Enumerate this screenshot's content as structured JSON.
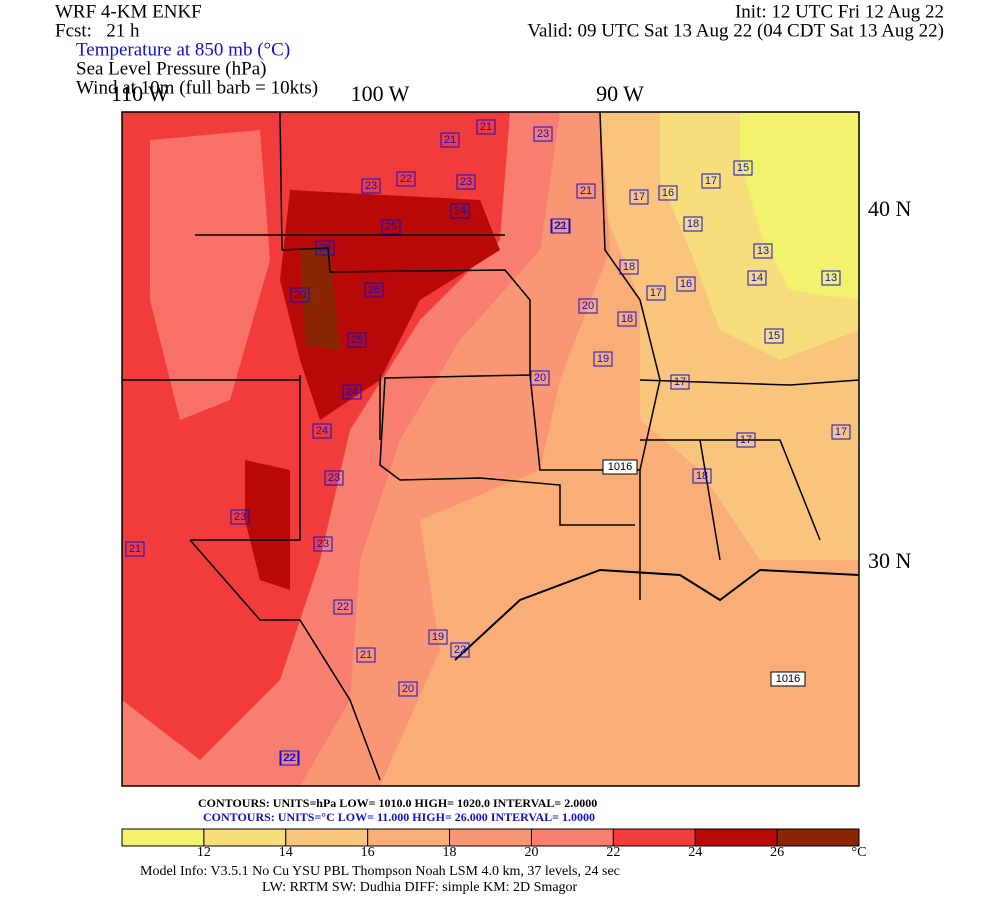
{
  "header": {
    "title": "WRF 4-KM ENKF",
    "forecast": "Fcst:   21 h",
    "init": "Init: 12 UTC Fri 12 Aug 22",
    "valid": "Valid: 09 UTC Sat 13 Aug 22 (04 CDT Sat 13 Aug 22)",
    "fields": [
      "Temperature at 850 mb (°C)",
      "Sea Level Pressure (hPa)",
      "Wind at 10m (full barb = 10kts)"
    ]
  },
  "map": {
    "longitude_labels": [
      "110 W",
      "100 W",
      "90 W"
    ],
    "latitude_labels": [
      "40 N",
      "30 N"
    ],
    "temperature_labels": [
      "21",
      "23",
      "23",
      "22",
      "23",
      "24",
      "25",
      "26",
      "21",
      "26",
      "25",
      "24",
      "24",
      "23",
      "23",
      "23",
      "22",
      "21",
      "20",
      "19",
      "22",
      "21",
      "20",
      "19",
      "20",
      "18",
      "17",
      "16",
      "15",
      "13",
      "13",
      "14",
      "17",
      "18",
      "17",
      "17",
      "16",
      "18",
      "17",
      "15",
      "17",
      "18",
      "21",
      "20",
      "22",
      "22",
      "21",
      "22"
    ],
    "pressure_labels": [
      "1016",
      "1016"
    ]
  },
  "legend": {
    "ticks": [
      "12",
      "14",
      "16",
      "18",
      "20",
      "22",
      "24",
      "26"
    ],
    "unit": "°C",
    "colors": [
      "#f2f26c",
      "#f7dd7c",
      "#f9c57c",
      "#f9ae78",
      "#f99673",
      "#f87e70",
      "#f23c3c",
      "#b90909",
      "#8a2604"
    ],
    "pressure_contours": "CONTOURS:  UNITS=hPa  LOW=   1010.0      HIGH=   1020.0       INTERVAL=    2.0000",
    "temperature_contours": "CONTOURS:  UNITS=°C  LOW=   11.000       HIGH=   26.000       INTERVAL=    1.0000"
  },
  "footer": {
    "model_info": "Model Info: V3.5.1    No Cu    YSU PBL  Thompson     Noah LSM  4.0 km,   37 levels,    24 sec",
    "physics": "LW: RRTM  SW: Dudhia  DIFF: simple  KM: 2D Smagor"
  }
}
